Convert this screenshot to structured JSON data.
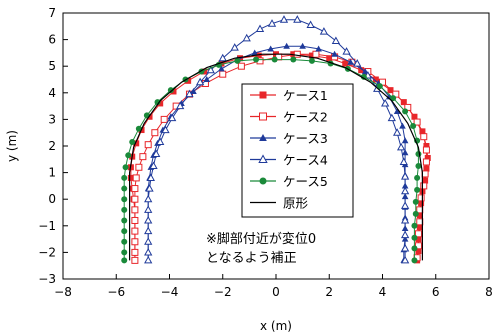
{
  "chart_data": {
    "type": "scatter",
    "title": "",
    "xlabel": "x (m)",
    "ylabel": "y (m)",
    "xlim": [
      -8,
      8
    ],
    "ylim": [
      -3,
      7
    ],
    "xticks": [
      -8,
      -6,
      -4,
      -2,
      0,
      2,
      4,
      6,
      8
    ],
    "yticks": [
      -3,
      -2,
      -1,
      0,
      1,
      2,
      3,
      4,
      5,
      6,
      7
    ],
    "grid": false,
    "legend_position": "center",
    "annotation": [
      "※脚部付近が変位0",
      "となるよう補正"
    ],
    "series": [
      {
        "name": "ケース1",
        "color": "#e8262a",
        "marker": "square-filled",
        "line": "solid",
        "points": [
          [
            -5.3,
            -2.3
          ],
          [
            -5.3,
            -2.0
          ],
          [
            -5.3,
            -1.6
          ],
          [
            -5.3,
            -1.2
          ],
          [
            -5.3,
            -0.8
          ],
          [
            -5.3,
            -0.4
          ],
          [
            -5.35,
            0.0
          ],
          [
            -5.4,
            0.4
          ],
          [
            -5.45,
            0.8
          ],
          [
            -5.45,
            1.2
          ],
          [
            -5.4,
            1.6
          ],
          [
            -5.25,
            2.1
          ],
          [
            -5.05,
            2.6
          ],
          [
            -4.75,
            3.1
          ],
          [
            -4.35,
            3.6
          ],
          [
            -3.85,
            4.05
          ],
          [
            -3.3,
            4.45
          ],
          [
            -2.7,
            4.8
          ],
          [
            -2.05,
            5.1
          ],
          [
            -1.35,
            5.3
          ],
          [
            -0.65,
            5.4
          ],
          [
            0.0,
            5.45
          ],
          [
            0.65,
            5.45
          ],
          [
            1.35,
            5.4
          ],
          [
            2.0,
            5.3
          ],
          [
            2.6,
            5.1
          ],
          [
            3.2,
            4.85
          ],
          [
            3.75,
            4.5
          ],
          [
            4.3,
            4.1
          ],
          [
            4.8,
            3.65
          ],
          [
            5.2,
            3.1
          ],
          [
            5.5,
            2.55
          ],
          [
            5.65,
            2.0
          ],
          [
            5.7,
            1.55
          ],
          [
            5.65,
            1.15
          ],
          [
            5.6,
            0.7
          ],
          [
            5.5,
            0.3
          ],
          [
            5.45,
            -0.15
          ],
          [
            5.4,
            -0.6
          ],
          [
            5.4,
            -1.05
          ],
          [
            5.35,
            -1.5
          ],
          [
            5.35,
            -1.95
          ],
          [
            5.3,
            -2.3
          ]
        ]
      },
      {
        "name": "ケース2",
        "color": "#e8262a",
        "marker": "square-open",
        "line": "solid",
        "points": [
          [
            -5.3,
            -2.3
          ],
          [
            -5.3,
            -2.0
          ],
          [
            -5.3,
            -1.6
          ],
          [
            -5.3,
            -1.2
          ],
          [
            -5.3,
            -0.8
          ],
          [
            -5.3,
            -0.4
          ],
          [
            -5.3,
            0.0
          ],
          [
            -5.3,
            0.4
          ],
          [
            -5.25,
            0.8
          ],
          [
            -5.15,
            1.2
          ],
          [
            -5.0,
            1.6
          ],
          [
            -4.8,
            2.05
          ],
          [
            -4.55,
            2.5
          ],
          [
            -4.2,
            3.0
          ],
          [
            -3.75,
            3.5
          ],
          [
            -3.25,
            3.95
          ],
          [
            -2.65,
            4.35
          ],
          [
            -2.0,
            4.7
          ],
          [
            -1.3,
            5.0
          ],
          [
            -0.6,
            5.2
          ],
          [
            0.1,
            5.35
          ],
          [
            0.8,
            5.45
          ],
          [
            1.5,
            5.45
          ],
          [
            2.2,
            5.35
          ],
          [
            2.85,
            5.15
          ],
          [
            3.45,
            4.8
          ],
          [
            4.0,
            4.4
          ],
          [
            4.5,
            3.95
          ],
          [
            4.95,
            3.45
          ],
          [
            5.3,
            2.9
          ],
          [
            5.55,
            2.35
          ],
          [
            5.65,
            1.85
          ],
          [
            5.65,
            1.4
          ],
          [
            5.6,
            0.95
          ],
          [
            5.55,
            0.5
          ],
          [
            5.45,
            0.05
          ],
          [
            5.4,
            -0.4
          ],
          [
            5.4,
            -0.85
          ],
          [
            5.35,
            -1.3
          ],
          [
            5.35,
            -1.75
          ],
          [
            5.3,
            -2.2
          ]
        ]
      },
      {
        "name": "ケース3",
        "color": "#1f3a9a",
        "marker": "triangle-filled",
        "line": "solid",
        "points": [
          [
            -4.8,
            -2.3
          ],
          [
            -4.8,
            -2.0
          ],
          [
            -4.8,
            -1.6
          ],
          [
            -4.8,
            -1.2
          ],
          [
            -4.8,
            -0.8
          ],
          [
            -4.8,
            -0.4
          ],
          [
            -4.8,
            0.0
          ],
          [
            -4.8,
            0.4
          ],
          [
            -4.75,
            0.8
          ],
          [
            -4.7,
            1.2
          ],
          [
            -4.6,
            1.65
          ],
          [
            -4.45,
            2.1
          ],
          [
            -4.25,
            2.6
          ],
          [
            -3.95,
            3.1
          ],
          [
            -3.55,
            3.6
          ],
          [
            -3.1,
            4.05
          ],
          [
            -2.6,
            4.5
          ],
          [
            -2.05,
            4.9
          ],
          [
            -1.45,
            5.25
          ],
          [
            -0.8,
            5.5
          ],
          [
            -0.2,
            5.65
          ],
          [
            0.4,
            5.75
          ],
          [
            1.0,
            5.75
          ],
          [
            1.6,
            5.65
          ],
          [
            2.2,
            5.45
          ],
          [
            2.8,
            5.15
          ],
          [
            3.35,
            4.8
          ],
          [
            3.85,
            4.35
          ],
          [
            4.25,
            3.85
          ],
          [
            4.55,
            3.3
          ],
          [
            4.75,
            2.75
          ],
          [
            4.85,
            2.2
          ],
          [
            4.85,
            1.75
          ],
          [
            4.85,
            1.3
          ],
          [
            4.85,
            0.9
          ],
          [
            4.85,
            0.5
          ],
          [
            4.85,
            0.1
          ],
          [
            4.85,
            -0.3
          ],
          [
            4.85,
            -0.7
          ],
          [
            4.85,
            -1.1
          ],
          [
            4.85,
            -1.5
          ],
          [
            4.8,
            -1.9
          ],
          [
            4.8,
            -2.3
          ]
        ]
      },
      {
        "name": "ケース4",
        "color": "#1f3a9a",
        "marker": "triangle-open",
        "line": "solid",
        "points": [
          [
            -4.8,
            -2.3
          ],
          [
            -4.8,
            -2.0
          ],
          [
            -4.8,
            -1.6
          ],
          [
            -4.8,
            -1.2
          ],
          [
            -4.8,
            -0.8
          ],
          [
            -4.8,
            -0.4
          ],
          [
            -4.8,
            0.0
          ],
          [
            -4.75,
            0.4
          ],
          [
            -4.7,
            0.8
          ],
          [
            -4.6,
            1.25
          ],
          [
            -4.5,
            1.7
          ],
          [
            -4.35,
            2.15
          ],
          [
            -4.15,
            2.6
          ],
          [
            -3.9,
            3.05
          ],
          [
            -3.6,
            3.5
          ],
          [
            -3.25,
            3.95
          ],
          [
            -2.85,
            4.4
          ],
          [
            -2.45,
            4.85
          ],
          [
            -2.0,
            5.3
          ],
          [
            -1.55,
            5.7
          ],
          [
            -1.1,
            6.05
          ],
          [
            -0.6,
            6.4
          ],
          [
            -0.15,
            6.6
          ],
          [
            0.3,
            6.75
          ],
          [
            0.8,
            6.75
          ],
          [
            1.3,
            6.55
          ],
          [
            1.8,
            6.3
          ],
          [
            2.25,
            5.95
          ],
          [
            2.65,
            5.55
          ],
          [
            3.05,
            5.1
          ],
          [
            3.45,
            4.65
          ],
          [
            3.8,
            4.15
          ],
          [
            4.1,
            3.6
          ],
          [
            4.35,
            3.05
          ],
          [
            4.55,
            2.5
          ],
          [
            4.7,
            1.95
          ],
          [
            4.8,
            1.4
          ],
          [
            4.85,
            0.85
          ],
          [
            4.85,
            0.3
          ],
          [
            4.85,
            -0.25
          ],
          [
            4.85,
            -0.8
          ],
          [
            4.85,
            -1.35
          ],
          [
            4.85,
            -1.85
          ],
          [
            4.85,
            -2.3
          ]
        ]
      },
      {
        "name": "ケース5",
        "color": "#1a8a3a",
        "marker": "circle-filled",
        "line": "solid",
        "points": [
          [
            -5.7,
            -2.3
          ],
          [
            -5.7,
            -2.0
          ],
          [
            -5.7,
            -1.6
          ],
          [
            -5.7,
            -1.2
          ],
          [
            -5.7,
            -0.8
          ],
          [
            -5.7,
            -0.4
          ],
          [
            -5.7,
            0.0
          ],
          [
            -5.7,
            0.4
          ],
          [
            -5.7,
            0.8
          ],
          [
            -5.65,
            1.2
          ],
          [
            -5.55,
            1.65
          ],
          [
            -5.4,
            2.15
          ],
          [
            -5.15,
            2.65
          ],
          [
            -4.85,
            3.15
          ],
          [
            -4.45,
            3.65
          ],
          [
            -3.95,
            4.1
          ],
          [
            -3.4,
            4.5
          ],
          [
            -2.8,
            4.8
          ],
          [
            -2.15,
            5.05
          ],
          [
            -1.45,
            5.2
          ],
          [
            -0.75,
            5.25
          ],
          [
            -0.05,
            5.25
          ],
          [
            0.65,
            5.25
          ],
          [
            1.35,
            5.2
          ],
          [
            2.05,
            5.1
          ],
          [
            2.7,
            4.9
          ],
          [
            3.3,
            4.6
          ],
          [
            3.9,
            4.25
          ],
          [
            4.4,
            3.8
          ],
          [
            4.85,
            3.3
          ],
          [
            5.15,
            2.75
          ],
          [
            5.3,
            2.2
          ],
          [
            5.35,
            1.7
          ],
          [
            5.35,
            1.25
          ],
          [
            5.3,
            0.8
          ],
          [
            5.3,
            0.35
          ],
          [
            5.25,
            -0.1
          ],
          [
            5.25,
            -0.55
          ],
          [
            5.2,
            -1.0
          ],
          [
            5.2,
            -1.45
          ],
          [
            5.2,
            -1.85
          ],
          [
            5.2,
            -2.3
          ]
        ]
      },
      {
        "name": "原形",
        "color": "#000000",
        "marker": "none",
        "line": "solid",
        "points": [
          [
            -5.5,
            -2.3
          ],
          [
            -5.5,
            1.0
          ],
          [
            -5.35,
            1.95
          ],
          [
            -4.95,
            2.85
          ],
          [
            -4.35,
            3.7
          ],
          [
            -3.55,
            4.4
          ],
          [
            -2.6,
            4.95
          ],
          [
            -1.55,
            5.3
          ],
          [
            -0.5,
            5.45
          ],
          [
            0.5,
            5.45
          ],
          [
            1.55,
            5.3
          ],
          [
            2.6,
            4.95
          ],
          [
            3.55,
            4.4
          ],
          [
            4.35,
            3.7
          ],
          [
            4.95,
            2.85
          ],
          [
            5.35,
            1.95
          ],
          [
            5.5,
            1.0
          ],
          [
            5.5,
            -2.3
          ]
        ]
      }
    ]
  }
}
